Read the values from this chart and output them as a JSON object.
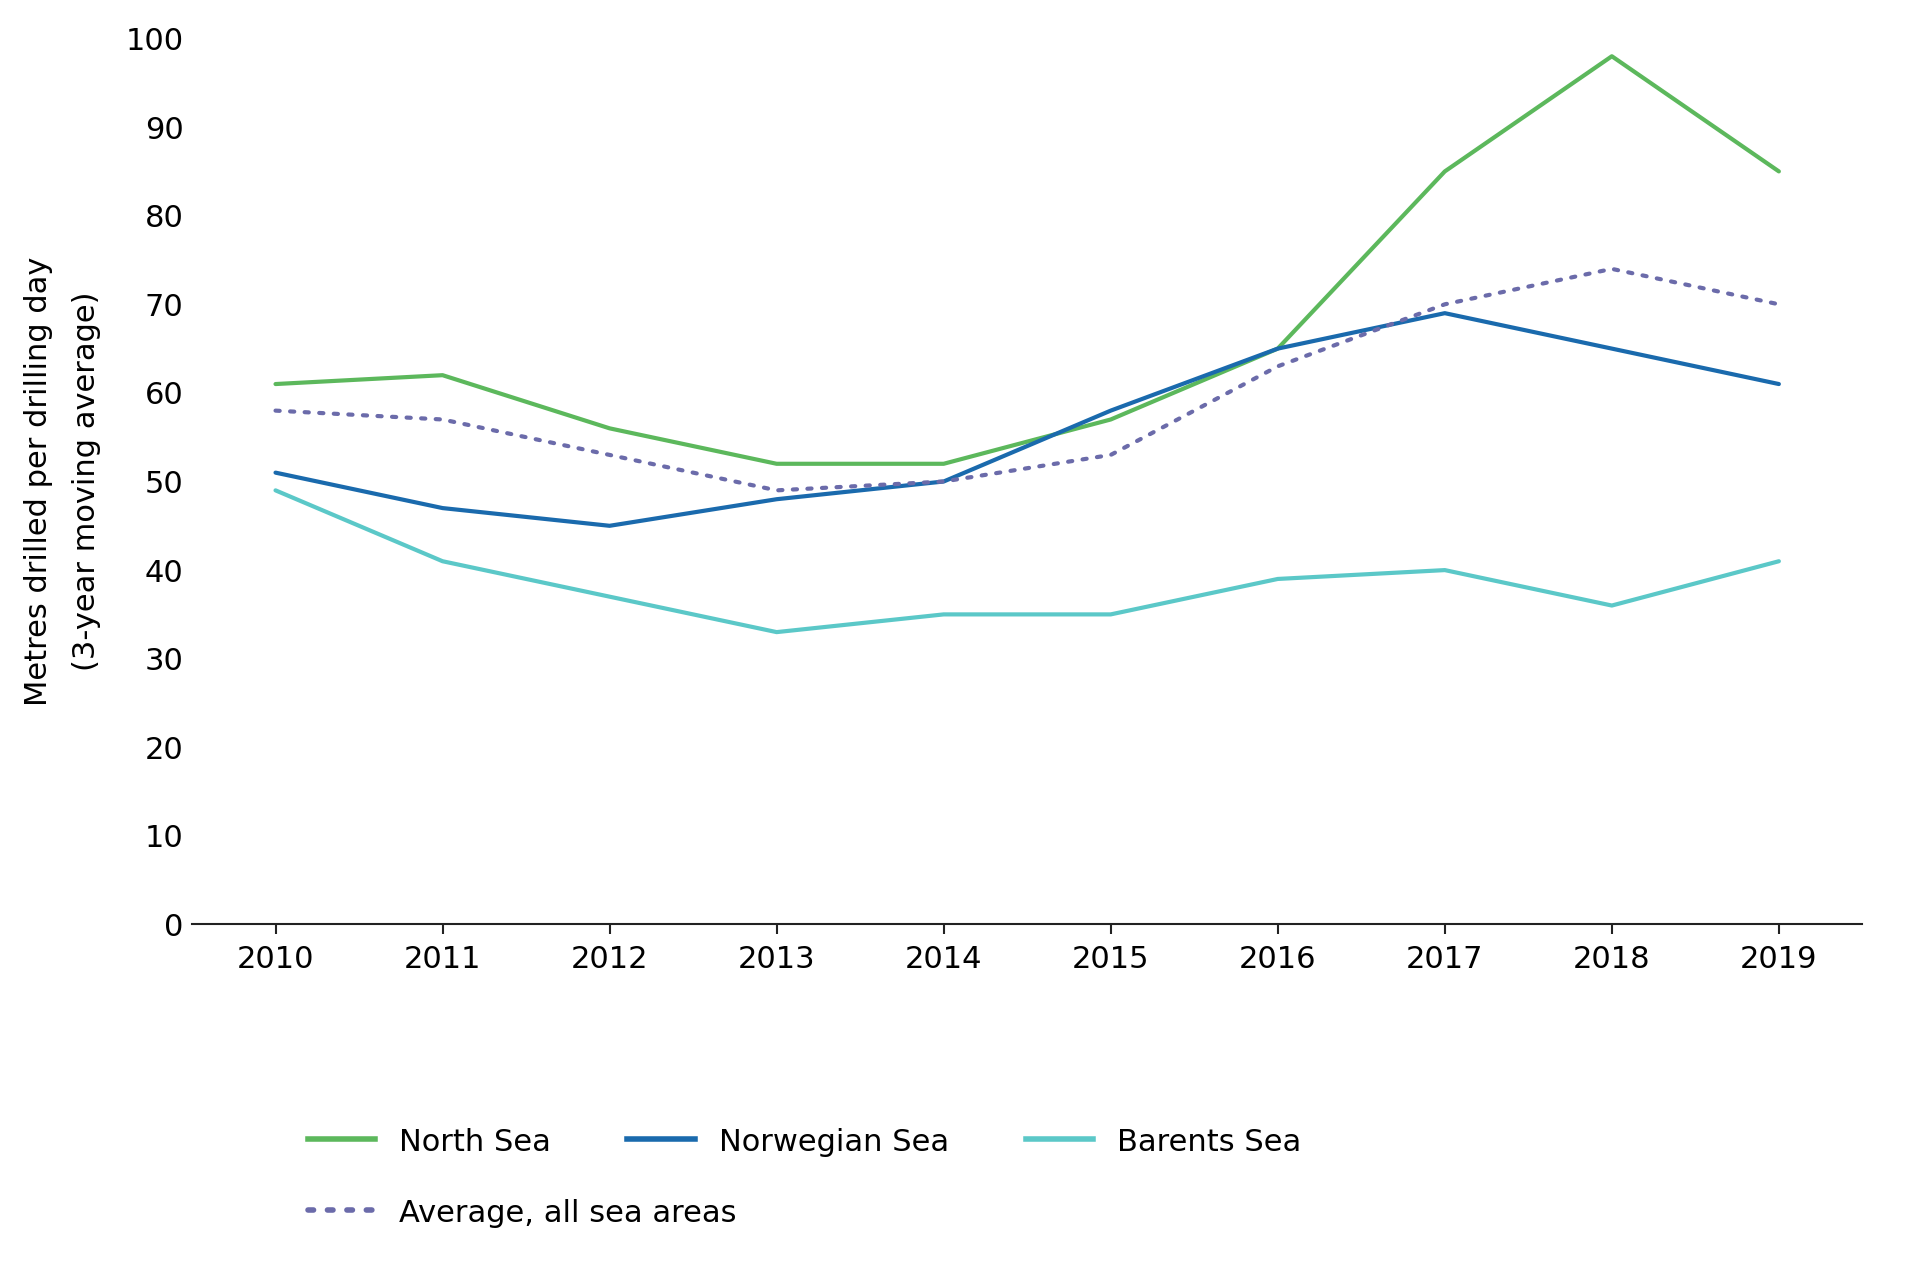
{
  "years": [
    2010,
    2011,
    2012,
    2013,
    2014,
    2015,
    2016,
    2017,
    2018,
    2019
  ],
  "north_sea": [
    61,
    62,
    56,
    52,
    52,
    57,
    65,
    85,
    98,
    85
  ],
  "norwegian_sea": [
    51,
    47,
    45,
    48,
    50,
    58,
    65,
    69,
    65,
    61
  ],
  "barents_sea": [
    49,
    41,
    37,
    33,
    35,
    35,
    39,
    40,
    36,
    41
  ],
  "average_all": [
    58,
    57,
    53,
    49,
    50,
    53,
    63,
    70,
    74,
    70
  ],
  "north_sea_color": "#5cb85c",
  "norwegian_sea_color": "#1a6aad",
  "barents_sea_color": "#5bc8c8",
  "average_color": "#6b6baa",
  "ylabel_line1": "Metres drilled per drilling day",
  "ylabel_line2": "(3-year moving average)",
  "ylim": [
    0,
    100
  ],
  "yticks": [
    0,
    10,
    20,
    30,
    40,
    50,
    60,
    70,
    80,
    90,
    100
  ],
  "legend_north_sea": "North Sea",
  "legend_norwegian_sea": "Norwegian Sea",
  "legend_barents_sea": "Barents Sea",
  "legend_average": "Average, all sea areas",
  "line_width": 3.0,
  "background_color": "#ffffff",
  "tick_fontsize": 22,
  "ylabel_fontsize": 22,
  "legend_fontsize": 22
}
